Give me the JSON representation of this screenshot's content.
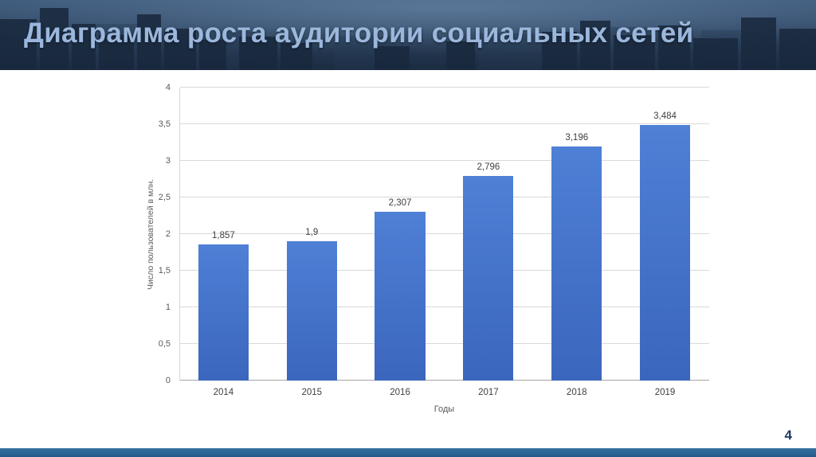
{
  "slide": {
    "title": "Диаграмма роста аудитории социальных сетей",
    "page_number": "4"
  },
  "chart_data": {
    "type": "bar",
    "title": "Диаграмма роста аудитории социальных сетей",
    "categories": [
      "2014",
      "2015",
      "2016",
      "2017",
      "2018",
      "2019"
    ],
    "values": [
      1.857,
      1.9,
      2.307,
      2.796,
      3.196,
      3.484
    ],
    "value_labels": [
      "1,857",
      "1,9",
      "2,307",
      "2,796",
      "3,196",
      "3,484"
    ],
    "xlabel": "Годы",
    "ylabel": "Число пользователей в млн.",
    "ylim": [
      0,
      4
    ],
    "ytick_step": 0.5,
    "ytick_labels": [
      "0",
      "0,5",
      "1",
      "1,5",
      "2",
      "2,5",
      "3",
      "3,5",
      "4"
    ],
    "grid": true,
    "legend": false,
    "bar_color": "#4472c4"
  },
  "colors": {
    "header_bg": "#26384e",
    "header_title": "#9bb7dd",
    "bar_top": "#4e80d6",
    "bar_bottom": "#3b66bd",
    "gridline": "#d9d9d9",
    "axis_text": "#595959",
    "page_number": "#1f3864",
    "footer_bar_top": "#35719f",
    "footer_bar_bottom": "#245a8a"
  }
}
